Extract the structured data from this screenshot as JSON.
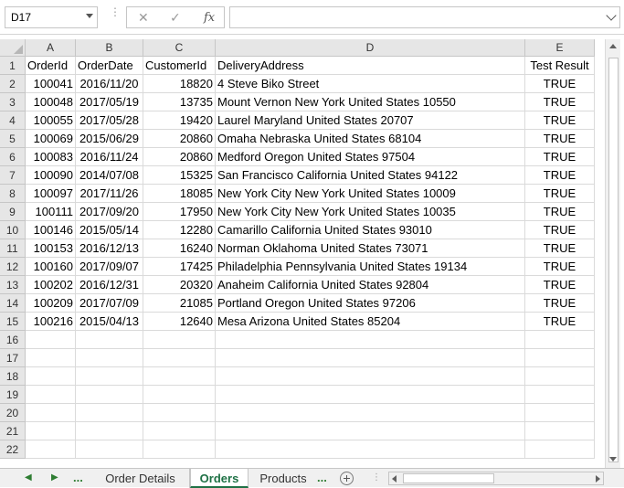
{
  "formula_bar": {
    "name_box": "D17",
    "cancel_icon": "✕",
    "enter_icon": "✓",
    "fx_label": "fx",
    "formula_value": ""
  },
  "columns": [
    "A",
    "B",
    "C",
    "D",
    "E"
  ],
  "row_numbers": [
    "1",
    "2",
    "3",
    "4",
    "5",
    "6",
    "7",
    "8",
    "9",
    "10",
    "11",
    "12",
    "13",
    "14",
    "15",
    "16",
    "17",
    "18",
    "19",
    "20",
    "21",
    "22"
  ],
  "header_row": [
    "OrderId",
    "OrderDate",
    "CustomerId",
    "DeliveryAddress",
    "Test Result"
  ],
  "rows": [
    [
      "100041",
      "2016/11/20",
      "18820",
      "4 Steve Biko Street",
      "TRUE"
    ],
    [
      "100048",
      "2017/05/19",
      "13735",
      "Mount Vernon New York United States 10550",
      "TRUE"
    ],
    [
      "100055",
      "2017/05/28",
      "19420",
      "Laurel Maryland United States 20707",
      "TRUE"
    ],
    [
      "100069",
      "2015/06/29",
      "20860",
      "Omaha Nebraska United States 68104",
      "TRUE"
    ],
    [
      "100083",
      "2016/11/24",
      "20860",
      "Medford Oregon United States 97504",
      "TRUE"
    ],
    [
      "100090",
      "2014/07/08",
      "15325",
      "San Francisco California United States 94122",
      "TRUE"
    ],
    [
      "100097",
      "2017/11/26",
      "18085",
      "New York City New York United States 10009",
      "TRUE"
    ],
    [
      "100111",
      "2017/09/20",
      "17950",
      "New York City New York United States 10035",
      "TRUE"
    ],
    [
      "100146",
      "2015/05/14",
      "12280",
      "Camarillo California United States 93010",
      "TRUE"
    ],
    [
      "100153",
      "2016/12/13",
      "16240",
      "Norman Oklahoma United States 73071",
      "TRUE"
    ],
    [
      "100160",
      "2017/09/07",
      "17425",
      "Philadelphia Pennsylvania United States 19134",
      "TRUE"
    ],
    [
      "100202",
      "2016/12/31",
      "20320",
      "Anaheim California United States 92804",
      "TRUE"
    ],
    [
      "100209",
      "2017/07/09",
      "21085",
      "Portland Oregon United States 97206",
      "TRUE"
    ],
    [
      "100216",
      "2015/04/13",
      "12640",
      "Mesa Arizona United States 85204",
      "TRUE"
    ]
  ],
  "sheet_tabs": {
    "more_left": "...",
    "tabs": [
      {
        "label": "Order Details",
        "active": false
      },
      {
        "label": "Orders",
        "active": true
      },
      {
        "label": "Products",
        "active": false
      }
    ],
    "more_right": "..."
  }
}
